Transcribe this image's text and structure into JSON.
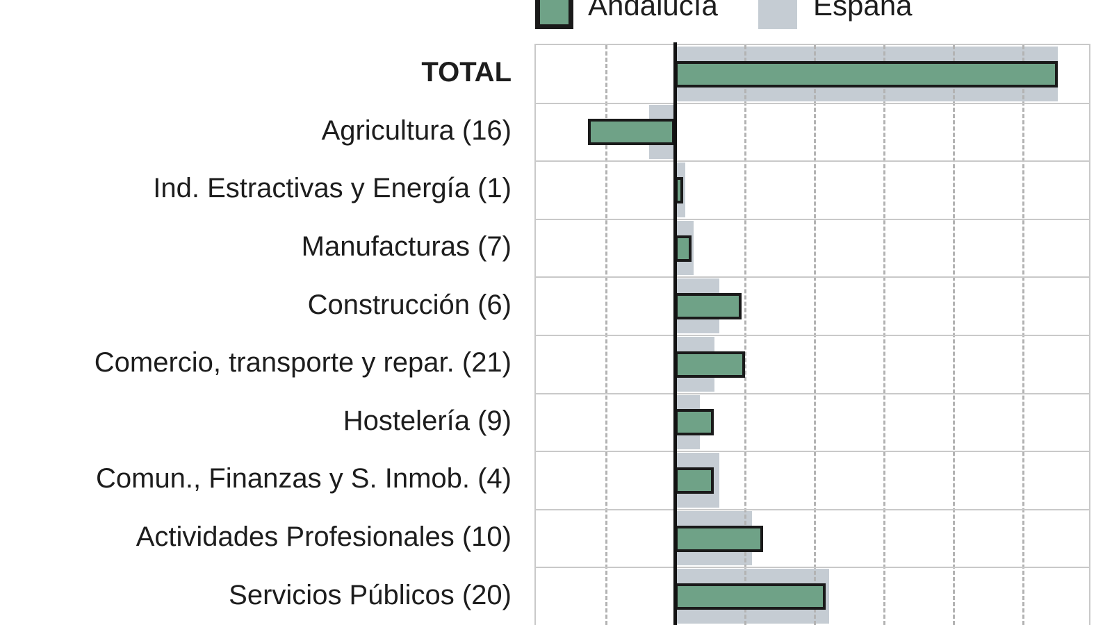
{
  "legend": {
    "items": [
      {
        "label": "Andalucía",
        "swatch_color": "#6FA287",
        "swatch_border": "#1a1a1a"
      },
      {
        "label": "España",
        "swatch_color": "#C5CCD3",
        "swatch_border": null
      }
    ],
    "position": "top",
    "note": "legend text partially cropped at top edge of image"
  },
  "chart_data": {
    "type": "bar",
    "orientation": "horizontal",
    "title": "",
    "categories": [
      "TOTAL",
      "Agricultura (16)",
      "Ind. Estractivas y Energía (1)",
      "Manufacturas (7)",
      "Construcción (6)",
      "Comercio, transporte y repar. (21)",
      "Hostelería (9)",
      "Comun., Finanzas y S. Inmob. (4)",
      "Actividades Profesionales (10)",
      "Servicios Públicos (20)"
    ],
    "series": [
      {
        "name": "Andalucía",
        "color": "#6FA287",
        "values": [
          5.51,
          -1.25,
          0.12,
          0.24,
          0.96,
          1.01,
          0.56,
          0.56,
          1.27,
          2.17
        ]
      },
      {
        "name": "España",
        "color": "#C5CCD3",
        "values": [
          5.51,
          -0.37,
          0.15,
          0.27,
          0.64,
          0.57,
          0.36,
          0.64,
          1.11,
          2.22
        ]
      }
    ],
    "xlim": [
      -2,
      6
    ],
    "x_tick_step": 1,
    "grid": "vertical-dashed",
    "zero_line": true,
    "legend_position": "top",
    "axis_note": "numeric axis tick labels not visible (chart cropped at bottom); values estimated in gridline units"
  },
  "colors": {
    "andalucia": "#6FA287",
    "espana": "#C5CCD3",
    "bar_outline": "#1a1a1a",
    "zero_line": "#121212",
    "grid_dash": "#b3b3b3",
    "row_separator": "#c9c9c9",
    "label_text": "#1d1d1d",
    "background": "#ffffff"
  }
}
